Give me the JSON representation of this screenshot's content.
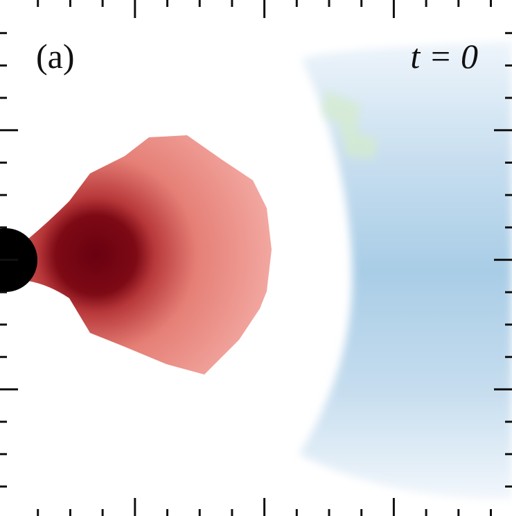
{
  "panel_label": "(a)",
  "time_label": "t = 0"
}
